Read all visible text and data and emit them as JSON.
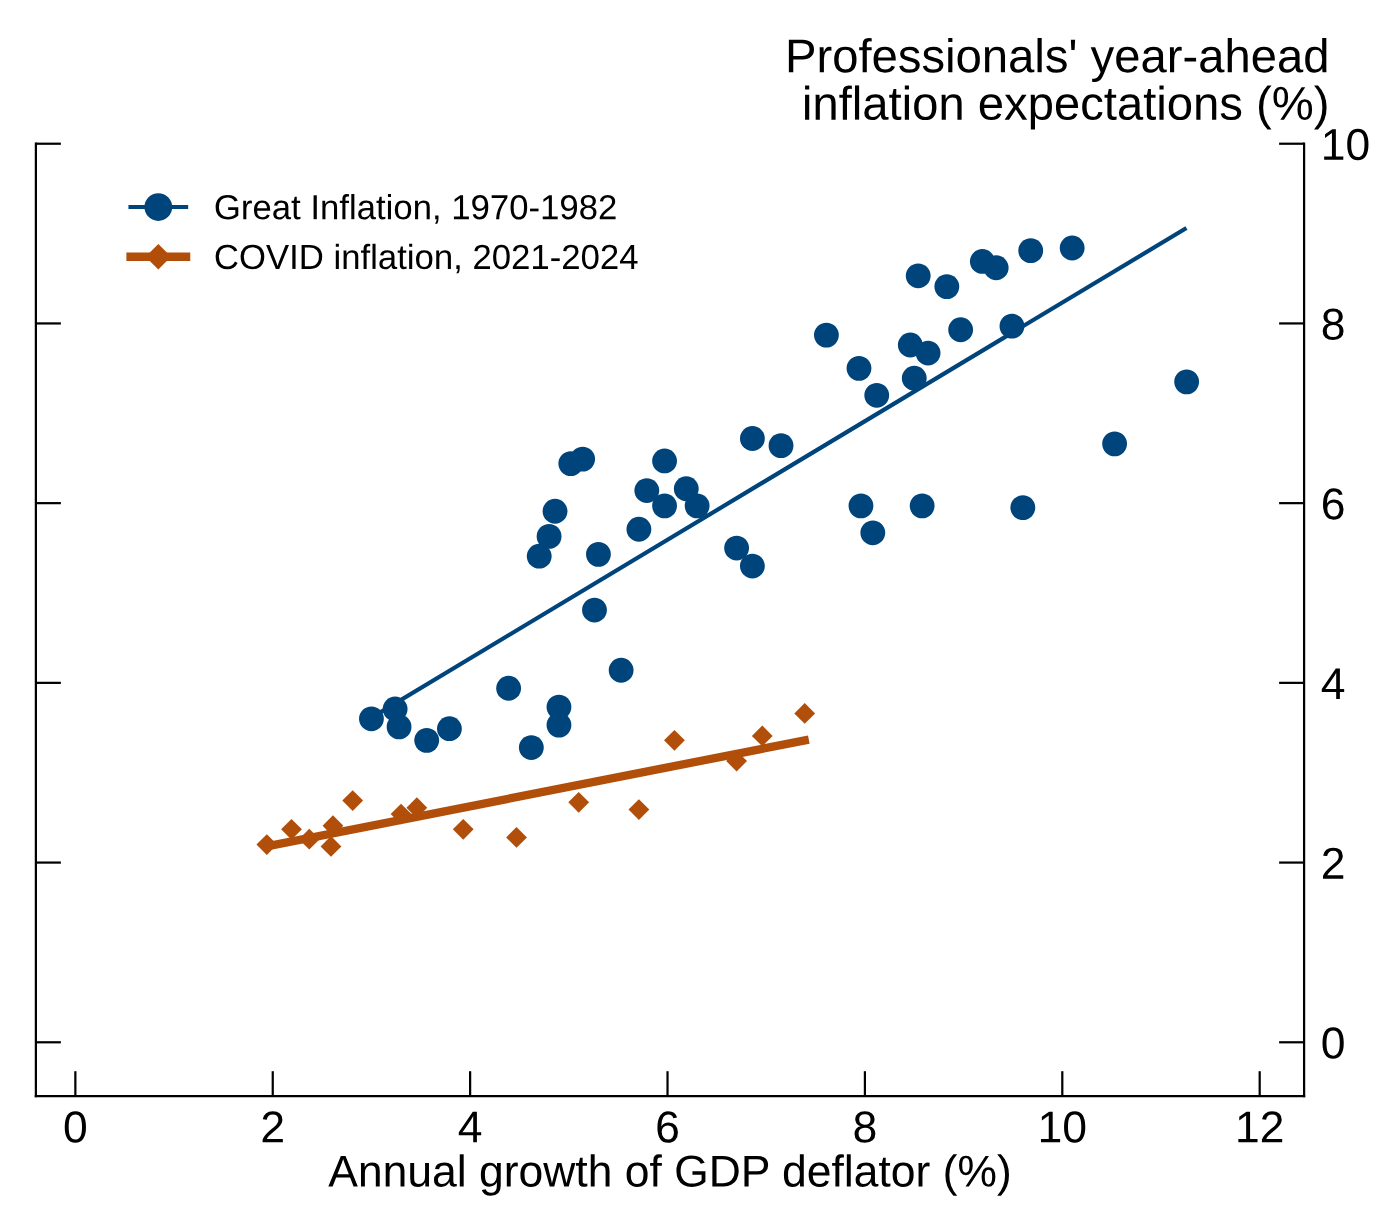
{
  "chart_data": {
    "type": "scatter",
    "ylabel": "Professionals' year-ahead\ninflation expectations (%)",
    "xlabel": "Annual growth of GDP deflator (%)",
    "xlim": [
      -0.4,
      12.45
    ],
    "xticks": [
      0,
      2,
      4,
      6,
      8,
      10,
      12
    ],
    "ylim": [
      -0.6,
      10
    ],
    "yticks": [
      0,
      2,
      4,
      6,
      8,
      10
    ],
    "legend": "top left",
    "grid": false,
    "series": [
      {
        "name": "Great Inflation, 1970-1982",
        "marker": "circle",
        "color": "#00447c",
        "x": [
          3.0,
          3.24,
          3.28,
          3.56,
          3.79,
          4.39,
          4.62,
          4.9,
          4.9,
          5.53,
          5.26,
          5.3,
          4.7,
          4.8,
          4.86,
          5.02,
          5.14,
          5.71,
          5.79,
          5.97,
          5.97,
          6.19,
          6.3,
          6.7,
          6.86,
          6.86,
          7.15,
          7.61,
          7.94,
          8.12,
          8.54,
          8.83,
          8.46,
          8.64,
          8.5,
          8.97,
          9.19,
          9.33,
          9.49,
          9.68,
          10.1,
          7.96,
          8.08,
          8.58,
          9.6,
          10.53,
          11.26
        ],
        "values": [
          3.6,
          3.71,
          3.51,
          3.36,
          3.49,
          3.94,
          3.28,
          3.73,
          3.53,
          4.14,
          4.81,
          5.43,
          5.41,
          5.63,
          5.91,
          6.44,
          6.49,
          5.71,
          6.14,
          6.47,
          5.97,
          6.16,
          5.97,
          5.5,
          5.3,
          6.72,
          6.64,
          7.87,
          7.5,
          7.2,
          8.53,
          8.41,
          7.76,
          7.67,
          7.39,
          7.93,
          8.69,
          8.62,
          7.97,
          8.81,
          8.84,
          5.97,
          5.67,
          5.97,
          5.95,
          6.66,
          7.35
        ]
      },
      {
        "type": "line",
        "color": "#00447c",
        "x": [
          2.98,
          11.24
        ],
        "values": [
          3.6,
          9.05
        ]
      },
      {
        "name": "COVID inflation, 2021-2024",
        "marker": "diamond",
        "color": "#b14e0a",
        "x": [
          1.94,
          2.19,
          2.37,
          2.61,
          2.59,
          2.81,
          3.3,
          3.46,
          3.93,
          4.47,
          5.1,
          5.71,
          6.07,
          6.7,
          6.96,
          7.39
        ],
        "values": [
          2.2,
          2.37,
          2.26,
          2.41,
          2.18,
          2.69,
          2.54,
          2.61,
          2.37,
          2.28,
          2.67,
          2.59,
          3.36,
          3.13,
          3.41,
          3.66
        ]
      },
      {
        "type": "line",
        "color": "#b14e0a",
        "x": [
          1.94,
          7.39
        ],
        "values": [
          2.18,
          3.36
        ]
      }
    ]
  }
}
